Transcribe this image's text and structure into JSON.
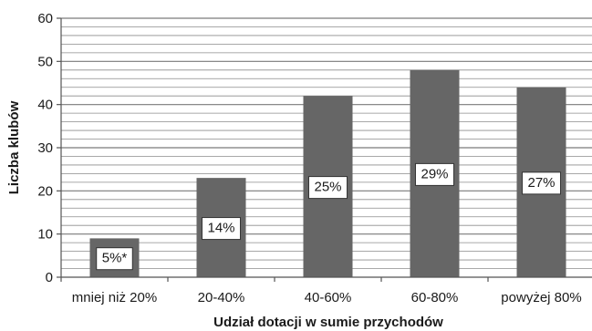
{
  "chart_data": {
    "type": "bar",
    "categories": [
      "mniej niż 20%",
      "20-40%",
      "40-60%",
      "60-80%",
      "powyżej 80%"
    ],
    "values": [
      9,
      23,
      42,
      48,
      44
    ],
    "data_labels": [
      "5%*",
      "14%",
      "25%",
      "29%",
      "27%"
    ],
    "xlabel": "Udział dotacji w sumie przychodów",
    "ylabel": "Liczba klubów",
    "ylim": [
      0,
      60
    ],
    "y_major_ticks": [
      0,
      10,
      20,
      30,
      40,
      50,
      60
    ],
    "y_minor_step": 2,
    "grid": true,
    "legend": false,
    "bar_color": "#666666",
    "grid_color": "#8c8c8c"
  }
}
